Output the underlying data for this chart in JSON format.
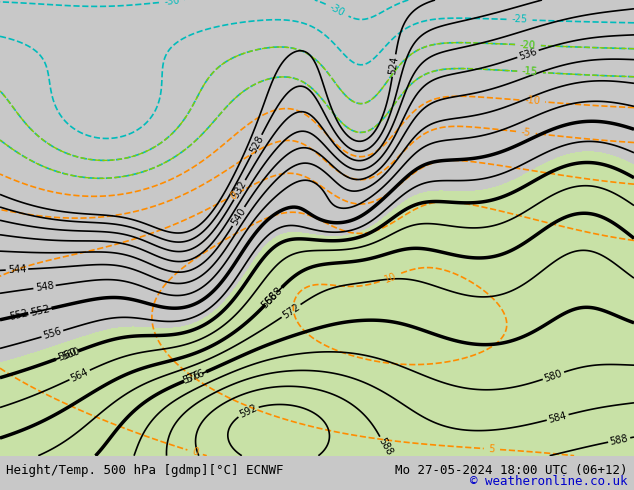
{
  "title_left": "Height/Temp. 500 hPa [gdmp][°C] ECNWF",
  "title_right": "Mo 27-05-2024 18:00 UTC (06+12)",
  "copyright": "© weatheronline.co.uk",
  "figsize": [
    6.34,
    4.9
  ],
  "dpi": 100,
  "title_fontsize": 9,
  "copyright_color": "#0000cc",
  "green_fill_color": "#c8e6a0",
  "land_color": "#c8c8c8",
  "bottom_bar_color": "#f0f0f0"
}
